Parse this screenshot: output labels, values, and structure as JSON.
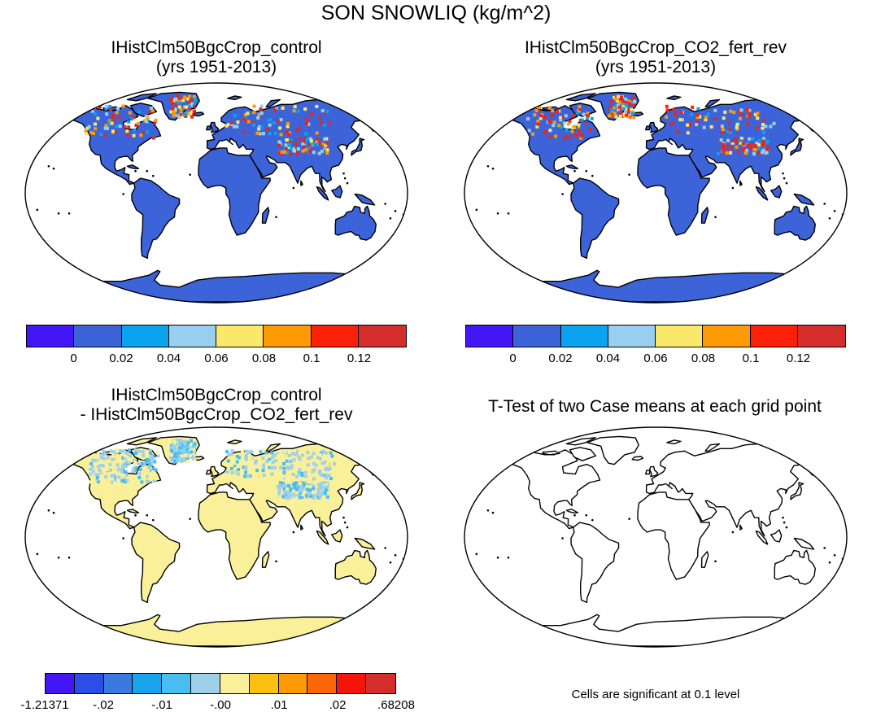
{
  "title": "SON SNOWLIQ (kg/m^2)",
  "panels": [
    {
      "title_line1": "IHistClm50BgcCrop_control",
      "title_line2": "(yrs 1951-2013)",
      "fill": "#3c64d8",
      "colorbar": {
        "colors": [
          "#4216f5",
          "#3c64d8",
          "#0ba2ee",
          "#99cfee",
          "#fae86a",
          "#fd9a06",
          "#fa2108",
          "#d52c2c"
        ],
        "labels": [
          "0",
          "0.02",
          "0.04",
          "0.06",
          "0.08",
          "0.1",
          "0.12"
        ]
      }
    },
    {
      "title_line1": "IHistClm50BgcCrop_CO2_fert_rev",
      "title_line2": "(yrs 1951-2013)",
      "fill": "#3c64d8",
      "colorbar": {
        "colors": [
          "#4216f5",
          "#3c64d8",
          "#0ba2ee",
          "#99cfee",
          "#fae86a",
          "#fd9a06",
          "#fa2108",
          "#d52c2c"
        ],
        "labels": [
          "0",
          "0.02",
          "0.04",
          "0.06",
          "0.08",
          "0.1",
          "0.12"
        ]
      }
    },
    {
      "title_line1": "IHistClm50BgcCrop_control",
      "title_line2": "- IHistClm50BgcCrop_CO2_fert_rev",
      "fill": "#fbf09a",
      "colorbar": {
        "colors": [
          "#4216f5",
          "#2a4ee6",
          "#3a7ae0",
          "#1aa3ee",
          "#48bdf0",
          "#9fd0ea",
          "#fbf09a",
          "#fcc010",
          "#fd9a06",
          "#fb6608",
          "#f3150a",
          "#d52c2c"
        ],
        "labels": [
          "-1.21371",
          "-.02",
          "-.01",
          "-.00",
          ".01",
          ".02",
          ".68208"
        ]
      }
    },
    {
      "title_line1": "T-Test of two Case means at each grid point",
      "title_line2": "",
      "fill": "#ffffff"
    }
  ],
  "ttest_note": "Cells are significant at 0.1 level"
}
